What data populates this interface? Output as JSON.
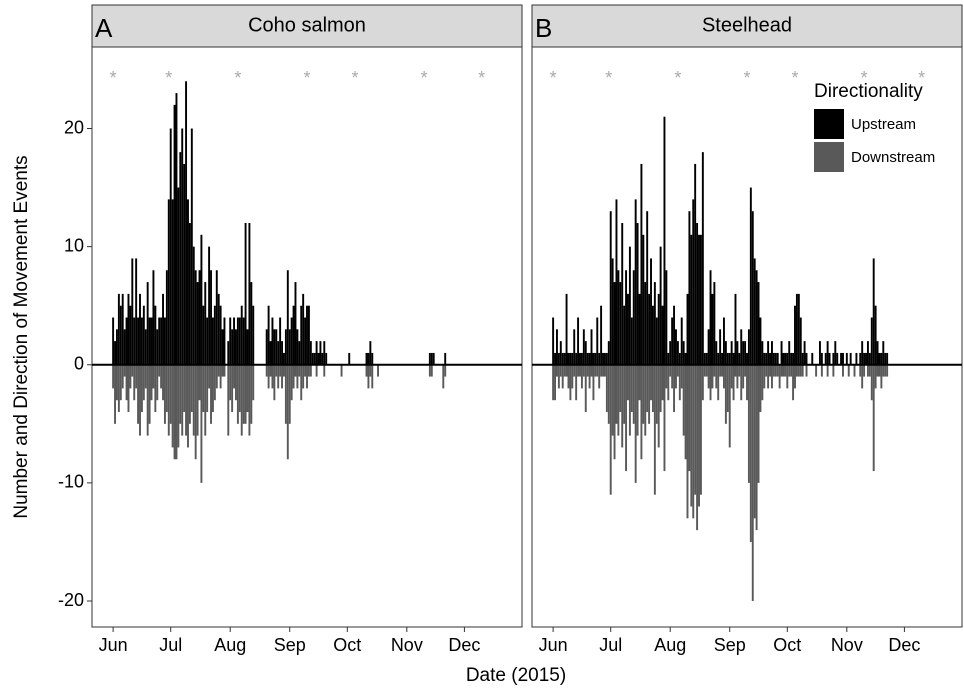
{
  "chart_data": {
    "type": "bar",
    "x_label": "Date (2015)",
    "y_label": "Number and Direction of Movement Events",
    "x": [
      0,
      1,
      2,
      3,
      4,
      5,
      6,
      7,
      8,
      9,
      10,
      11,
      12,
      13,
      14,
      15,
      16,
      17,
      18,
      19,
      20,
      21,
      22,
      23,
      24,
      25,
      26,
      27,
      28,
      29,
      30,
      31,
      32,
      33,
      34,
      35,
      36,
      37,
      38,
      39,
      40,
      41,
      42,
      43,
      44,
      45,
      46,
      47,
      48,
      49,
      50,
      51,
      52,
      53,
      54,
      55,
      56,
      57,
      58,
      59,
      60,
      61,
      62,
      63,
      64,
      65,
      66,
      67,
      68,
      69,
      70,
      71,
      72,
      73,
      74,
      75,
      76,
      77,
      78,
      79,
      80,
      81,
      82,
      83,
      84,
      85,
      86,
      87,
      88,
      89,
      90,
      91,
      92,
      93,
      94,
      95,
      96,
      97,
      98,
      99,
      100,
      101,
      102,
      103,
      104,
      105,
      106,
      107,
      108,
      109,
      110,
      111,
      112,
      113,
      114,
      115,
      116,
      117,
      118,
      119,
      120,
      121,
      122,
      123,
      124,
      125,
      126,
      127,
      128,
      129,
      130,
      131,
      132,
      133,
      134,
      135,
      136,
      137,
      138,
      139,
      140,
      141,
      142,
      143,
      144,
      145,
      146,
      147,
      148,
      149,
      150,
      151,
      152,
      153,
      154,
      155,
      156,
      157,
      158,
      159,
      160,
      161,
      162,
      163,
      164,
      165,
      166,
      167,
      168,
      169,
      170,
      171,
      172,
      173,
      174,
      175
    ],
    "xlim": [
      -11,
      213
    ],
    "xticks": [
      {
        "value": 0,
        "label": "Jun"
      },
      {
        "value": 30,
        "label": "Jul"
      },
      {
        "value": 61,
        "label": "Aug"
      },
      {
        "value": 92,
        "label": "Sep"
      },
      {
        "value": 122,
        "label": "Oct"
      },
      {
        "value": 153,
        "label": "Nov"
      },
      {
        "value": 183,
        "label": "Dec"
      }
    ],
    "ylim": [
      -22.2,
      26.9
    ],
    "yticks": [
      -20,
      -10,
      0,
      10,
      20
    ],
    "grid": false,
    "legend": {
      "title": "Directionality",
      "position": "top-right"
    },
    "series": [
      {
        "name": "Upstream",
        "color": "#000000"
      },
      {
        "name": "Downstream",
        "color": "#595959"
      }
    ],
    "asterisk": {
      "label": "*",
      "x": [
        0,
        29,
        65,
        101,
        126,
        162,
        192
      ],
      "y": 24.5,
      "color": "#aaaaaa"
    },
    "panels": [
      {
        "tag": "A",
        "title": "Coho salmon",
        "values": [
          [
            4,
            2,
            3,
            6,
            5,
            6,
            3,
            4,
            6,
            5,
            9,
            4,
            9,
            4,
            6,
            4,
            5,
            3,
            7,
            4,
            4,
            8,
            5,
            3,
            4,
            4,
            6,
            4,
            8,
            14,
            20,
            14,
            22,
            23,
            15,
            18,
            20,
            17,
            24,
            14,
            12,
            20,
            10,
            8,
            7,
            8,
            11,
            5,
            7,
            4,
            10,
            8,
            4,
            5,
            8,
            6,
            5,
            3,
            4,
            0,
            2,
            4,
            3,
            4,
            3,
            4,
            4,
            5,
            4,
            12,
            3,
            12,
            7,
            5,
            0,
            0,
            0,
            0,
            0,
            0,
            3,
            5,
            2,
            4,
            3,
            3,
            2,
            4,
            2,
            1,
            3,
            8,
            3,
            4,
            5,
            7,
            3,
            2,
            5,
            6,
            4,
            5,
            5,
            2,
            1,
            1,
            2,
            1,
            2,
            1,
            2,
            1,
            0,
            0,
            0,
            0,
            0,
            0,
            0,
            0,
            0,
            0,
            0,
            1,
            0,
            0,
            0,
            0,
            0,
            0,
            0,
            0,
            1,
            1,
            2,
            1,
            0,
            0,
            0,
            0,
            0,
            0,
            0,
            0,
            0,
            0,
            0,
            0,
            0,
            0,
            0,
            0,
            0,
            0,
            0,
            0,
            0,
            0,
            0,
            0,
            0,
            0,
            0,
            0,
            0,
            1,
            1,
            1,
            0,
            0,
            0,
            0,
            0,
            1,
            0,
            0
          ],
          [
            -2,
            -5,
            -3,
            -4,
            -3,
            -2,
            -1,
            -3,
            -4,
            -2,
            -1,
            -3,
            -2,
            -5,
            -6,
            -4,
            -3,
            -2,
            -6,
            -5,
            -3,
            -2,
            -4,
            -3,
            -1,
            -2,
            -3,
            -5,
            -4,
            -6,
            -5,
            -7,
            -8,
            -8,
            -7,
            -5,
            -6,
            -4,
            -6,
            -7,
            -5,
            -4,
            -6,
            -8,
            -6,
            -3,
            -10,
            -4,
            -6,
            -4,
            -2,
            -5,
            -4,
            -3,
            -2,
            -1,
            -2,
            -1,
            -1,
            0,
            -6,
            -3,
            -4,
            -2,
            -3,
            -5,
            -4,
            -6,
            -5,
            -5,
            -4,
            -6,
            -5,
            -3,
            0,
            0,
            0,
            0,
            0,
            0,
            -1,
            -2,
            -1,
            -2,
            -3,
            -1,
            -2,
            -1,
            -2,
            -1,
            -5,
            -8,
            -5,
            -3,
            -2,
            -1,
            -2,
            -1,
            -3,
            -2,
            -1,
            -2,
            -1,
            -1,
            0,
            0,
            -1,
            0,
            0,
            0,
            -1,
            0,
            0,
            0,
            0,
            0,
            0,
            0,
            0,
            -1,
            0,
            0,
            0,
            0,
            0,
            0,
            0,
            0,
            0,
            0,
            0,
            0,
            -1,
            -2,
            -1,
            -2,
            0,
            0,
            -1,
            0,
            0,
            0,
            0,
            0,
            0,
            0,
            0,
            0,
            0,
            0,
            0,
            0,
            0,
            0,
            0,
            0,
            0,
            0,
            0,
            0,
            0,
            0,
            0,
            0,
            0,
            -1,
            -1,
            0,
            0,
            0,
            0,
            0,
            -2,
            -1,
            0,
            0
          ]
        ]
      },
      {
        "tag": "B",
        "title": "Steelhead",
        "values": [
          [
            4,
            1,
            3,
            1,
            2,
            1,
            1,
            6,
            1,
            1,
            1,
            3,
            1,
            4,
            1,
            1,
            3,
            2,
            1,
            1,
            3,
            1,
            1,
            4,
            1,
            5,
            1,
            1,
            1,
            2,
            13,
            9,
            7,
            14,
            8,
            7,
            12,
            5,
            8,
            6,
            10,
            4,
            8,
            14,
            12,
            6,
            17,
            11,
            7,
            13,
            6,
            9,
            5,
            7,
            4,
            6,
            10,
            5,
            21,
            8,
            1,
            2,
            4,
            5,
            3,
            2,
            1,
            4,
            2,
            1,
            6,
            13,
            11,
            14,
            17,
            12,
            11,
            11,
            18,
            1,
            1,
            3,
            8,
            6,
            7,
            2,
            1,
            3,
            1,
            4,
            2,
            1,
            1,
            2,
            1,
            6,
            2,
            1,
            3,
            2,
            2,
            1,
            3,
            15,
            13,
            9,
            8,
            7,
            4,
            2,
            1,
            1,
            2,
            1,
            2,
            1,
            1,
            1,
            0,
            2,
            1,
            1,
            1,
            2,
            1,
            1,
            5,
            6,
            6,
            4,
            1,
            2,
            1,
            0,
            0,
            1,
            0,
            0,
            0,
            2,
            1,
            0,
            1,
            2,
            1,
            0,
            1,
            2,
            1,
            0,
            1,
            1,
            0,
            1,
            0,
            1,
            0,
            0,
            1,
            0,
            1,
            2,
            1,
            1,
            2,
            1,
            4,
            9,
            5,
            2,
            1,
            1,
            2,
            1,
            1,
            0
          ],
          [
            -3,
            -3,
            -1,
            -2,
            -1,
            -2,
            -1,
            -1,
            -2,
            -3,
            -2,
            -1,
            -3,
            -1,
            -1,
            -2,
            -1,
            -4,
            -1,
            -2,
            -1,
            -3,
            -1,
            -1,
            -2,
            -1,
            -1,
            -1,
            -4,
            -5,
            -11,
            -6,
            -8,
            -5,
            -6,
            -4,
            -7,
            -5,
            -9,
            -3,
            -6,
            -4,
            -5,
            -10,
            -6,
            -3,
            -8,
            -5,
            -6,
            -4,
            -5,
            -3,
            -4,
            -11,
            -5,
            -7,
            -4,
            -3,
            -9,
            -2,
            -3,
            -1,
            -2,
            -4,
            -2,
            -1,
            -3,
            -2,
            -6,
            -8,
            -13,
            -9,
            -12,
            -13,
            -11,
            -14,
            -12,
            -11,
            -3,
            -1,
            -1,
            -2,
            -3,
            -2,
            -1,
            -2,
            -3,
            -1,
            -1,
            -2,
            -5,
            -4,
            -7,
            -2,
            -3,
            -1,
            -2,
            -1,
            -3,
            -2,
            -1,
            -3,
            -10,
            -15,
            -20,
            -13,
            -14,
            -10,
            -4,
            -3,
            -2,
            -1,
            -2,
            -1,
            -2,
            -1,
            -1,
            -1,
            -2,
            -1,
            -1,
            -1,
            -2,
            -1,
            -1,
            -3,
            -2,
            -1,
            -1,
            -1,
            -1,
            0,
            -1,
            0,
            0,
            0,
            0,
            -1,
            0,
            0,
            -1,
            0,
            0,
            -1,
            0,
            0,
            -1,
            0,
            0,
            0,
            0,
            -1,
            0,
            0,
            -1,
            0,
            0,
            -1,
            0,
            0,
            -1,
            -2,
            -1,
            0,
            -1,
            -1,
            -3,
            -9,
            -2,
            -1,
            -1,
            -2,
            -1,
            -1,
            -1,
            0
          ]
        ]
      }
    ]
  }
}
